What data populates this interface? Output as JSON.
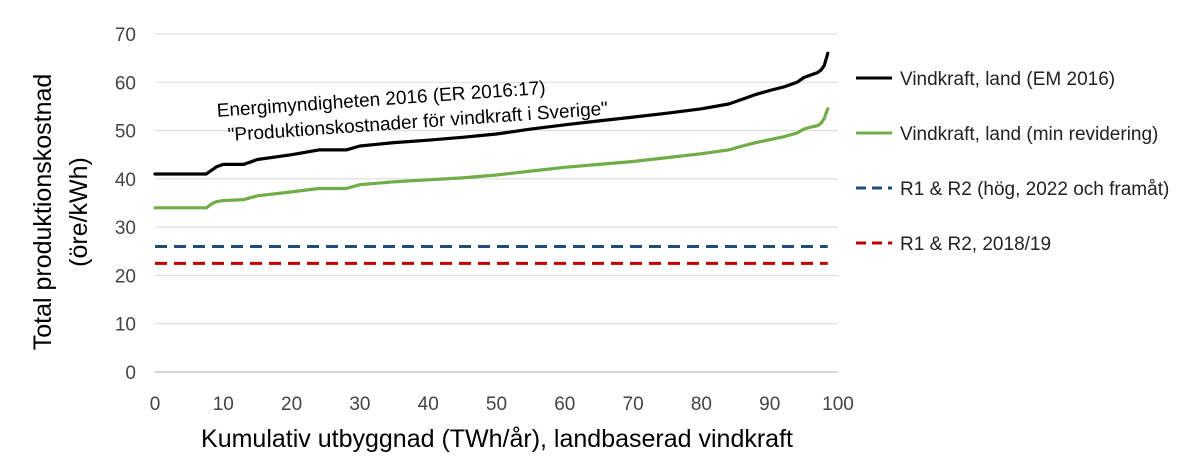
{
  "chart_data": {
    "type": "line",
    "title": "",
    "xlabel": "Kumulativ utbyggnad (TWh/år), landbaserad vindkraft",
    "ylabel_line1": "Total produktionskostnad",
    "ylabel_line2": "(öre/kWh)",
    "xlim": [
      0,
      100
    ],
    "ylim": [
      0,
      70
    ],
    "xticks": [
      0,
      10,
      20,
      30,
      40,
      50,
      60,
      70,
      80,
      90,
      100
    ],
    "yticks": [
      0,
      10,
      20,
      30,
      40,
      50,
      60,
      70
    ],
    "grid": "horizontal",
    "legend_position": "right",
    "annotation_line1": "Energimyndigheten 2016 (ER 2016:17)",
    "annotation_line2": "\"Produktionskostnader för vindkraft i Sverige\"",
    "series": [
      {
        "name": "Vindkraft, land (EM 2016)",
        "color": "#000000",
        "dash": "solid",
        "x": [
          0,
          7.5,
          8,
          8.5,
          9,
          10,
          13,
          15,
          20,
          24,
          28,
          30,
          35,
          40,
          45,
          50,
          55,
          60,
          65,
          70,
          75,
          80,
          84,
          86,
          88,
          90,
          92,
          94,
          95,
          96,
          97,
          97.5,
          98,
          98.3,
          98.5
        ],
        "y": [
          41,
          41,
          41.5,
          42,
          42.5,
          43,
          43,
          44,
          45,
          46,
          46,
          46.8,
          47.5,
          48,
          48.6,
          49.3,
          50.3,
          51.2,
          52,
          52.8,
          53.6,
          54.5,
          55.5,
          56.5,
          57.5,
          58.3,
          59,
          60,
          61,
          61.5,
          62,
          62.5,
          63.5,
          65,
          66
        ]
      },
      {
        "name": "Vindkraft, land (min revidering)",
        "color": "#70AD47",
        "dash": "solid",
        "x": [
          0,
          7.5,
          8,
          8.5,
          9,
          10,
          13,
          15,
          20,
          24,
          28,
          30,
          35,
          40,
          45,
          50,
          55,
          60,
          65,
          70,
          75,
          80,
          84,
          86,
          88,
          90,
          92,
          94,
          95,
          96,
          97,
          97.5,
          98,
          98.3,
          98.5
        ],
        "y": [
          34,
          34,
          34.5,
          35,
          35.3,
          35.5,
          35.7,
          36.5,
          37.3,
          38,
          38,
          38.8,
          39.4,
          39.8,
          40.2,
          40.8,
          41.6,
          42.4,
          43,
          43.6,
          44.4,
          45.2,
          46,
          46.8,
          47.5,
          48.1,
          48.7,
          49.5,
          50.3,
          50.7,
          51,
          51.5,
          52.5,
          53.8,
          54.5
        ]
      },
      {
        "name": "R1 & R2 (hög, 2022 och framåt)",
        "color": "#1F4E79",
        "dash": "dashed",
        "x": [
          0,
          98.5
        ],
        "y": [
          26,
          26
        ]
      },
      {
        "name": "R1 & R2, 2018/19",
        "color": "#C00000",
        "dash": "dashed",
        "x": [
          0,
          98.5
        ],
        "y": [
          22.5,
          22.5
        ]
      }
    ]
  }
}
